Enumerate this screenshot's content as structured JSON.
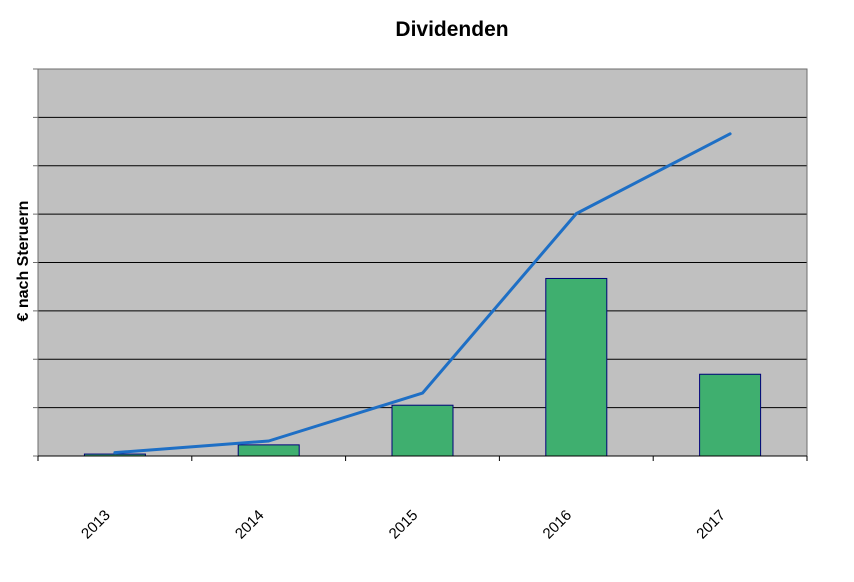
{
  "chart_data": {
    "type": "bar",
    "subtype": "combo-bar-line",
    "title": "Dividenden",
    "ylabel": "€ nach Steruern",
    "xlabel": "",
    "categories": [
      "2013",
      "2014",
      "2015",
      "2016",
      "2017"
    ],
    "series": [
      {
        "type": "bar",
        "values": [
          0.04,
          0.23,
          1.05,
          3.67,
          1.69
        ]
      },
      {
        "type": "line",
        "values": [
          0.07,
          0.31,
          1.3,
          5.01,
          6.66
        ]
      }
    ],
    "ylim": [
      0,
      8
    ],
    "gridline_interval": 1,
    "grid": true,
    "legend": "none",
    "y_tick_labels_visible": false,
    "x_label_rotation_deg": -45,
    "colors": {
      "plot_bg": "#C0C0C0",
      "plot_border": "#6E6E6E",
      "grid": "#000000",
      "bar_fill": "#3FAF6F",
      "bar_border": "#00007A",
      "line": "#1E6FC5",
      "axis": "#000000",
      "tick": "#6E6E6E",
      "text": "#000000"
    }
  }
}
